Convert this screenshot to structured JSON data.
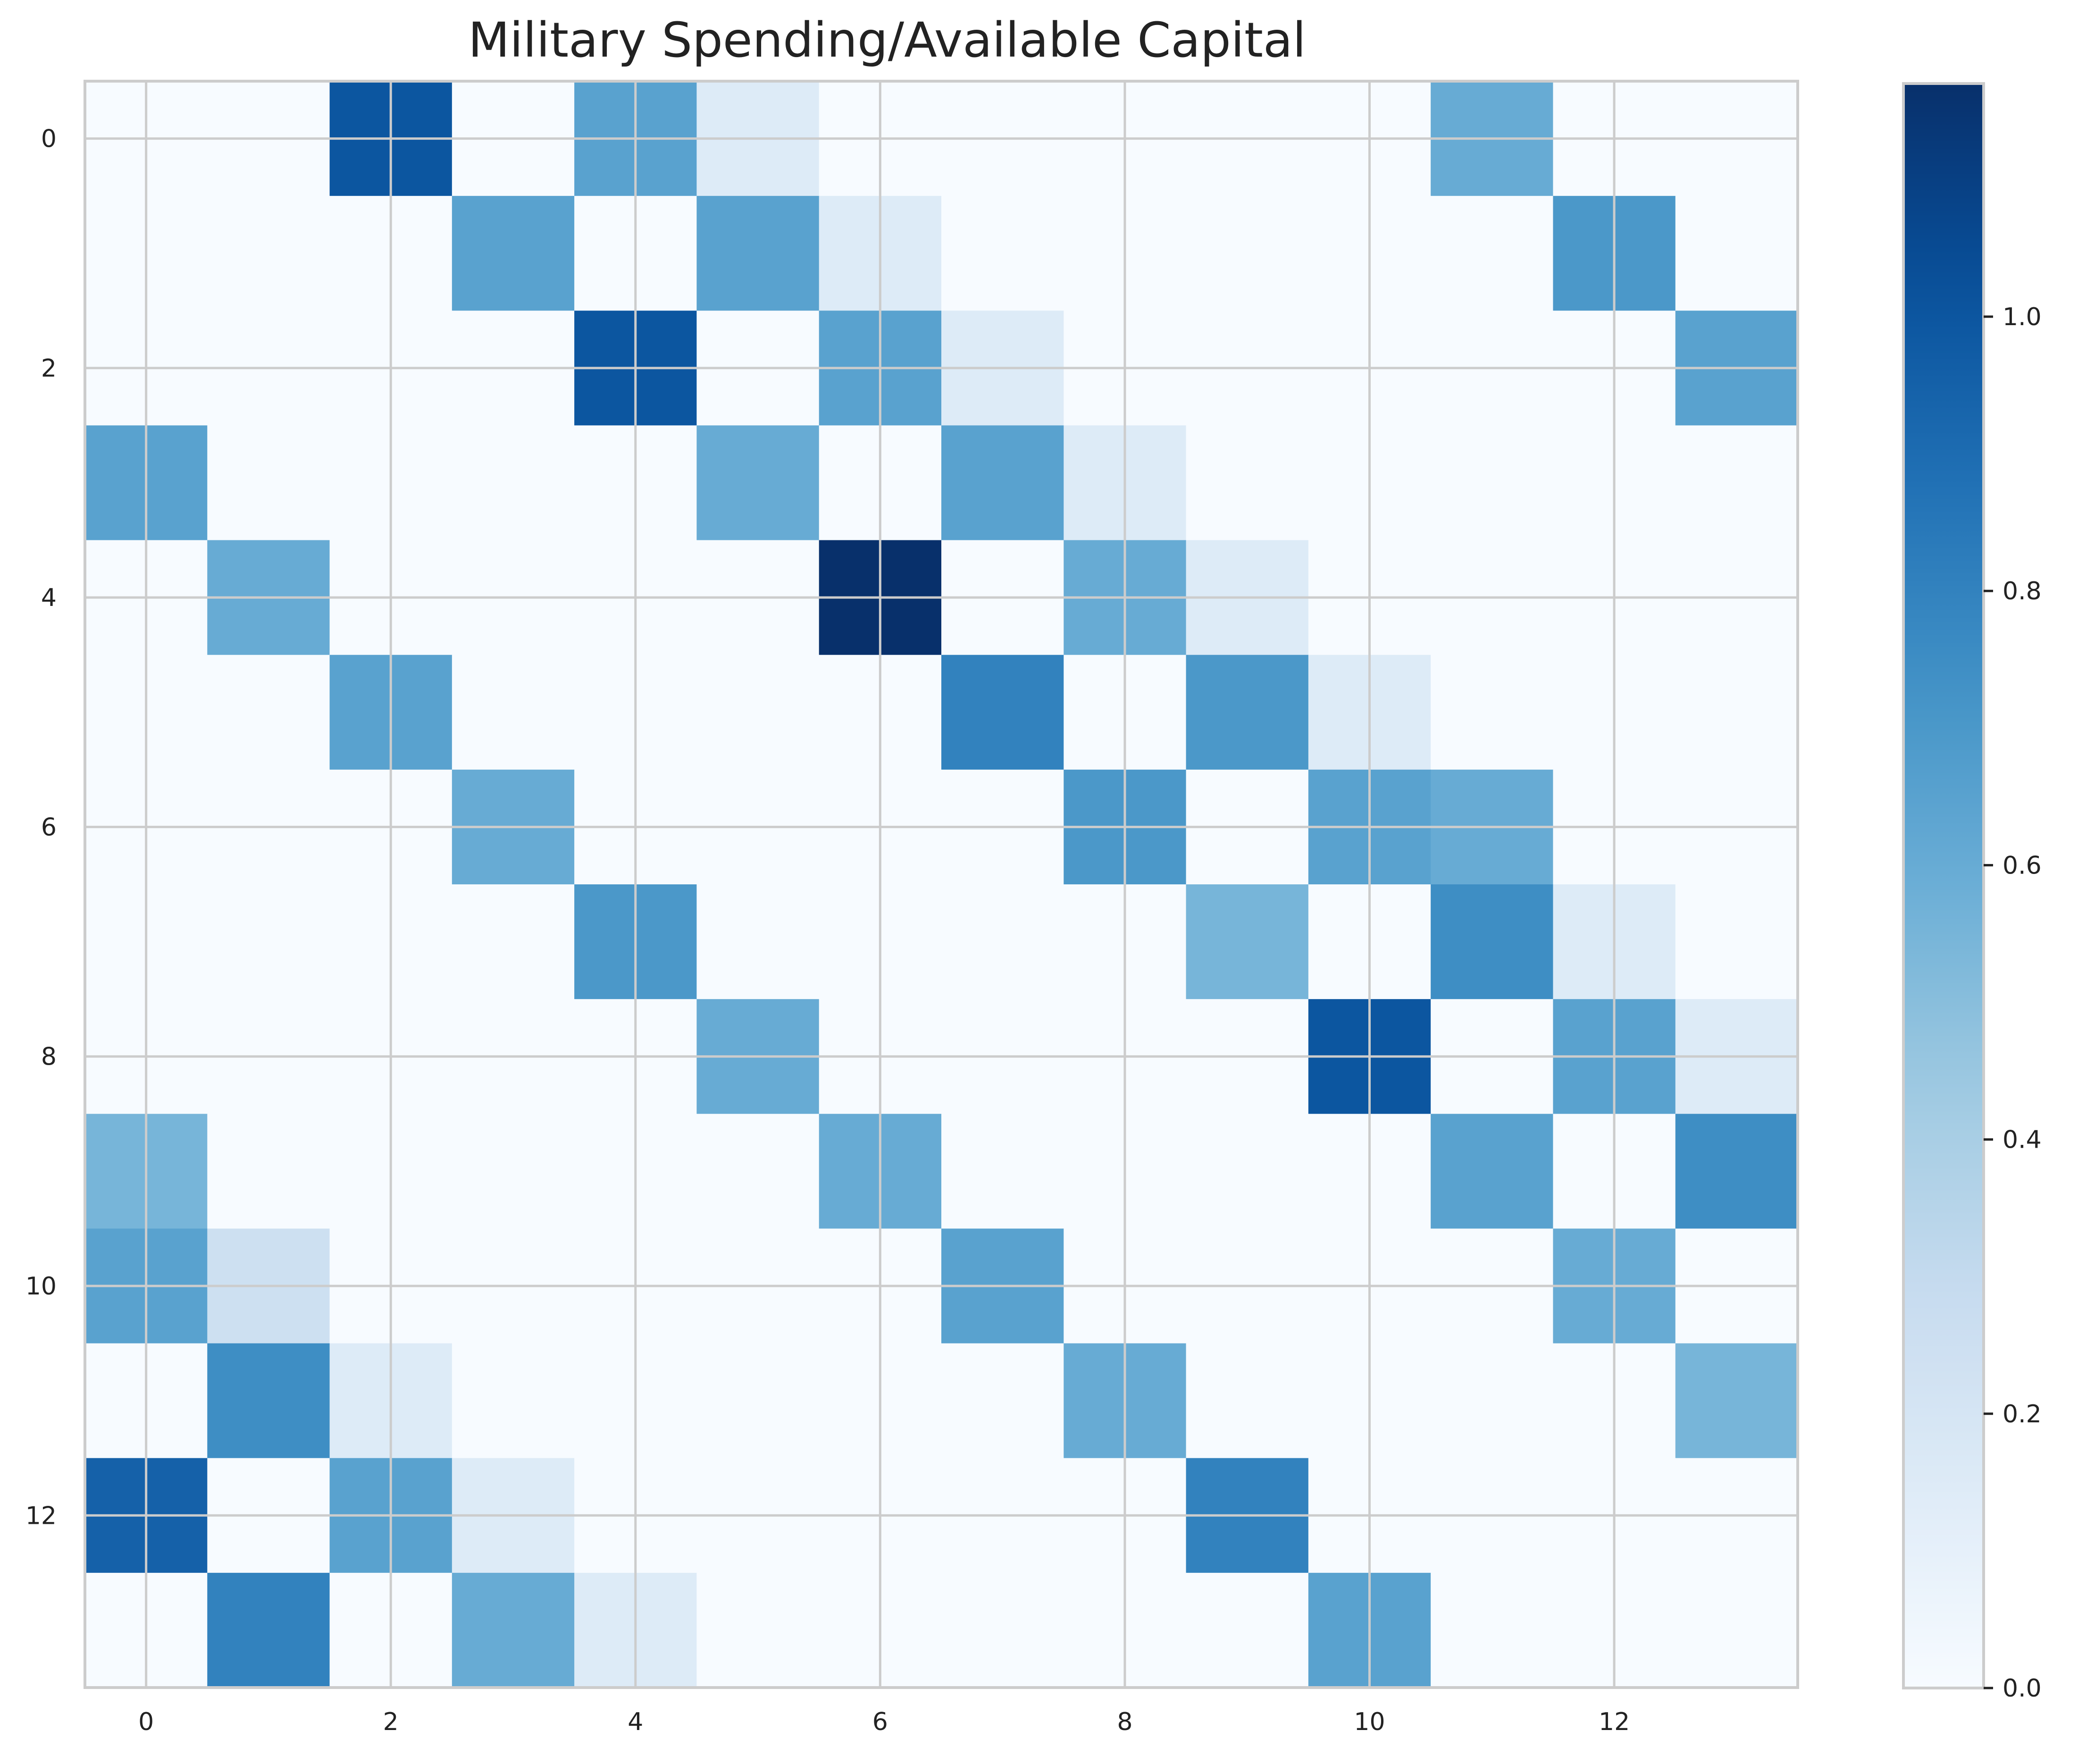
{
  "chart_data": {
    "type": "heatmap",
    "title": "Military Spending/Available Capital",
    "xlabel": "",
    "ylabel": "",
    "colormap": "Blues",
    "colorscale": {
      "min": 0.0,
      "max": 1.17
    },
    "x_ticks": [
      0,
      2,
      4,
      6,
      8,
      10,
      12
    ],
    "y_ticks": [
      0,
      2,
      4,
      6,
      8,
      10,
      12
    ],
    "colorbar_ticks": [
      "0.0",
      "0.2",
      "0.4",
      "0.6",
      "0.8",
      "1.0"
    ],
    "colorbar_tick_values": [
      0.0,
      0.2,
      0.4,
      0.6,
      0.8,
      1.0
    ],
    "grid": true,
    "matrix": [
      [
        0,
        0,
        1.0,
        0,
        0.65,
        0.15,
        0,
        0,
        0,
        0,
        0,
        0.6,
        0,
        0
      ],
      [
        0,
        0,
        0,
        0.65,
        0,
        0.65,
        0.15,
        0,
        0,
        0,
        0,
        0,
        0.7,
        0
      ],
      [
        0,
        0,
        0,
        0,
        1.0,
        0,
        0.65,
        0.15,
        0,
        0,
        0,
        0,
        0,
        0.65
      ],
      [
        0.65,
        0,
        0,
        0,
        0,
        0.6,
        0,
        0.65,
        0.15,
        0,
        0,
        0,
        0,
        0
      ],
      [
        0,
        0.6,
        0,
        0,
        0,
        0,
        1.17,
        0,
        0.6,
        0.15,
        0,
        0,
        0,
        0
      ],
      [
        0,
        0,
        0.65,
        0,
        0,
        0,
        0,
        0.8,
        0,
        0.7,
        0.15,
        0,
        0,
        0
      ],
      [
        0,
        0,
        0,
        0.6,
        0,
        0,
        0,
        0,
        0.7,
        0,
        0.65,
        0.6,
        0,
        0
      ],
      [
        0,
        0,
        0,
        0,
        0.7,
        0,
        0,
        0,
        0,
        0.55,
        0,
        0.75,
        0.15,
        0
      ],
      [
        0,
        0,
        0,
        0,
        0,
        0.6,
        0,
        0,
        0,
        0,
        1.0,
        0,
        0.65,
        0.15
      ],
      [
        0.55,
        0,
        0,
        0,
        0,
        0,
        0.6,
        0,
        0,
        0,
        0,
        0.65,
        0,
        0.75
      ],
      [
        0.65,
        0.25,
        0,
        0,
        0,
        0,
        0,
        0.65,
        0,
        0,
        0,
        0,
        0.6,
        0
      ],
      [
        0,
        0.75,
        0.15,
        0,
        0,
        0,
        0,
        0,
        0.6,
        0,
        0,
        0,
        0,
        0.55
      ],
      [
        0.95,
        0,
        0.65,
        0.15,
        0,
        0,
        0,
        0,
        0,
        0.8,
        0,
        0,
        0,
        0
      ],
      [
        0,
        0.8,
        0,
        0.6,
        0.15,
        0,
        0,
        0,
        0,
        0,
        0.65,
        0,
        0,
        0
      ]
    ]
  }
}
